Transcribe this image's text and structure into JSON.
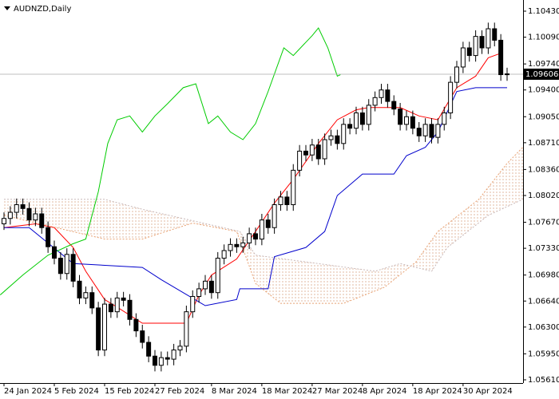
{
  "chart_data": {
    "type": "candlestick",
    "title": "AUDNZD,Daily",
    "categories": [
      "24 Jan 2024",
      null,
      null,
      null,
      null,
      null,
      null,
      null,
      "5 Feb 2024",
      null,
      null,
      null,
      null,
      null,
      null,
      null,
      "15 Feb 2024",
      null,
      null,
      null,
      null,
      null,
      null,
      null,
      "27 Feb 2024",
      null,
      null,
      null,
      null,
      null,
      null,
      null,
      null,
      "8 Mar 2024",
      null,
      null,
      null,
      null,
      null,
      null,
      null,
      "18 Mar 2024",
      null,
      null,
      null,
      null,
      null,
      null,
      null,
      "27 Mar 2024",
      null,
      null,
      null,
      null,
      null,
      null,
      null,
      "8 Apr 2024",
      null,
      null,
      null,
      null,
      null,
      null,
      null,
      "18 Apr 2024",
      null,
      null,
      null,
      null,
      null,
      null,
      null,
      "30 Apr 2024",
      null,
      null,
      null,
      null,
      null,
      null,
      null
    ],
    "open": [
      1.0765,
      1.0772,
      1.078,
      1.079,
      1.0785,
      1.077,
      1.0778,
      1.076,
      1.0735,
      1.072,
      1.07,
      1.0725,
      1.069,
      1.0668,
      1.0675,
      1.0655,
      1.06,
      1.066,
      1.065,
      1.0668,
      1.0665,
      1.064,
      1.0625,
      1.061,
      1.0592,
      1.058,
      1.059,
      1.0588,
      1.06,
      1.0605,
      1.065,
      1.067,
      1.068,
      1.069,
      1.0675,
      1.072,
      1.073,
      1.0738,
      1.0735,
      1.074,
      1.0752,
      1.0745,
      1.077,
      1.076,
      1.079,
      1.08,
      1.079,
      1.0835,
      1.086,
      1.0855,
      1.0868,
      1.085,
      1.0875,
      1.088,
      1.087,
      1.0895,
      1.089,
      1.091,
      1.0895,
      1.092,
      1.093,
      1.094,
      1.0925,
      1.0915,
      1.0895,
      1.0905,
      1.089,
      1.088,
      1.0895,
      1.0878,
      1.0895,
      1.091,
      1.095,
      1.097,
      1.0995,
      1.0985,
      1.101,
      1.0995,
      1.102,
      1.1005,
      1.096
    ],
    "high": [
      1.078,
      1.0788,
      1.0798,
      1.0798,
      1.0793,
      1.0786,
      1.0786,
      1.0768,
      1.0743,
      1.0728,
      1.0733,
      1.0733,
      1.0698,
      1.0683,
      1.0683,
      1.0663,
      1.0668,
      1.0668,
      1.0676,
      1.0676,
      1.0673,
      1.0648,
      1.0633,
      1.0618,
      1.06,
      1.0598,
      1.0598,
      1.0608,
      1.0613,
      1.0658,
      1.0678,
      1.0688,
      1.0698,
      1.0698,
      1.0728,
      1.0738,
      1.0746,
      1.0746,
      1.0748,
      1.076,
      1.076,
      1.0778,
      1.0778,
      1.0798,
      1.0808,
      1.0808,
      1.0843,
      1.0868,
      1.0868,
      1.0876,
      1.0876,
      1.0883,
      1.0888,
      1.0888,
      1.0903,
      1.0903,
      1.0918,
      1.0918,
      1.0928,
      1.0938,
      1.0948,
      1.0948,
      1.0933,
      1.0923,
      1.0913,
      1.0913,
      1.0898,
      1.0903,
      1.0903,
      1.0903,
      1.0918,
      1.0958,
      1.0978,
      1.1003,
      1.1003,
      1.1018,
      1.1018,
      1.1028,
      1.1028,
      1.1013,
      1.0969
    ],
    "low": [
      1.0757,
      1.0764,
      1.0772,
      1.0777,
      1.0762,
      1.0762,
      1.0752,
      1.0727,
      1.0712,
      1.0692,
      1.0692,
      1.0682,
      1.066,
      1.066,
      1.0647,
      1.0592,
      1.0592,
      1.0642,
      1.0642,
      1.0657,
      1.0632,
      1.0617,
      1.0602,
      1.0584,
      1.0572,
      1.0572,
      1.058,
      1.058,
      1.0592,
      1.0597,
      1.0642,
      1.0662,
      1.0672,
      1.0667,
      1.0667,
      1.0712,
      1.0722,
      1.0727,
      1.0727,
      1.0732,
      1.0737,
      1.0737,
      1.0752,
      1.0752,
      1.0782,
      1.0782,
      1.0782,
      1.0827,
      1.0847,
      1.0847,
      1.0842,
      1.0842,
      1.0867,
      1.0862,
      1.0862,
      1.0882,
      1.0882,
      1.0887,
      1.0887,
      1.0912,
      1.0922,
      1.0917,
      1.0907,
      1.0887,
      1.0887,
      1.0882,
      1.0872,
      1.0872,
      1.087,
      1.087,
      1.0887,
      1.0902,
      1.0942,
      1.0962,
      1.0977,
      1.0977,
      1.0987,
      1.0987,
      1.0997,
      1.0952,
      1.0952
    ],
    "close": [
      1.0772,
      1.078,
      1.079,
      1.0785,
      1.077,
      1.0778,
      1.076,
      1.0735,
      1.072,
      1.07,
      1.0725,
      1.069,
      1.0668,
      1.0675,
      1.0655,
      1.06,
      1.066,
      1.065,
      1.0668,
      1.0665,
      1.064,
      1.0625,
      1.061,
      1.0592,
      1.058,
      1.059,
      1.0588,
      1.06,
      1.0605,
      1.065,
      1.067,
      1.068,
      1.069,
      1.0675,
      1.072,
      1.073,
      1.0738,
      1.0735,
      1.074,
      1.0752,
      1.0745,
      1.077,
      1.076,
      1.079,
      1.08,
      1.079,
      1.0835,
      1.086,
      1.0855,
      1.0868,
      1.085,
      1.0875,
      1.088,
      1.087,
      1.0895,
      1.089,
      1.091,
      1.0895,
      1.092,
      1.093,
      1.094,
      1.0925,
      1.0915,
      1.0895,
      1.0905,
      1.089,
      1.088,
      1.0895,
      1.0878,
      1.0895,
      1.091,
      1.095,
      1.097,
      1.0995,
      1.0985,
      1.101,
      1.0995,
      1.102,
      1.1005,
      1.096,
      1.0961
    ],
    "up_color": "#ffffff",
    "down_color": "#000000",
    "ylim": [
      1.05568,
      1.10576
    ],
    "yticks": [
      {
        "value": 1.1043,
        "label": "1.10430"
      },
      {
        "value": 1.1009,
        "label": "1.10090"
      },
      {
        "value": 1.0974,
        "label": "1.09740"
      },
      {
        "value": 1.094,
        "label": "1.09400"
      },
      {
        "value": 1.0905,
        "label": "1.09050"
      },
      {
        "value": 1.0871,
        "label": "1.08710"
      },
      {
        "value": 1.0836,
        "label": "1.08360"
      },
      {
        "value": 1.0802,
        "label": "1.08020"
      },
      {
        "value": 1.0767,
        "label": "1.07670"
      },
      {
        "value": 1.0733,
        "label": "1.07330"
      },
      {
        "value": 1.0698,
        "label": "1.06980"
      },
      {
        "value": 1.0664,
        "label": "1.06640"
      },
      {
        "value": 1.063,
        "label": "1.06300"
      },
      {
        "value": 1.0595,
        "label": "1.05950"
      },
      {
        "value": 1.0561,
        "label": "1.05610"
      }
    ],
    "last_price": 1.09606,
    "overlays": [
      {
        "color": "#ff0000",
        "dash": false,
        "x": [
          0,
          5,
          8,
          11,
          13,
          16,
          18,
          22,
          29,
          31,
          33,
          37,
          40,
          43,
          46,
          50,
          53,
          56,
          58,
          63,
          66,
          69,
          72,
          75,
          77,
          79
        ],
        "values": [
          1.076,
          1.0765,
          1.076,
          1.0734,
          1.0703,
          1.0666,
          1.0656,
          1.0635,
          1.0635,
          1.0672,
          1.0698,
          1.0719,
          1.0755,
          1.0792,
          1.0823,
          1.087,
          1.0901,
          1.0914,
          1.0917,
          1.0917,
          1.0906,
          1.0901,
          1.0943,
          1.0958,
          1.0982,
          1.0988
        ]
      },
      {
        "color": "#0000cc",
        "dash": false,
        "x": [
          0,
          4,
          11,
          22,
          25,
          32,
          37,
          37.5,
          42,
          43,
          48,
          51,
          53,
          56,
          57,
          62,
          64,
          67,
          69,
          72,
          75,
          80
        ],
        "values": [
          1.076,
          1.076,
          1.0713,
          1.0708,
          1.0692,
          1.0658,
          1.0666,
          1.068,
          1.068,
          1.0722,
          1.0734,
          1.0755,
          1.0802,
          1.0823,
          1.083,
          1.083,
          1.0854,
          1.0865,
          1.0885,
          1.0938,
          1.0943,
          1.0943
        ]
      },
      {
        "color": "#00cc00",
        "dash": false,
        "x": [
          -0.6,
          3,
          7,
          11,
          13,
          15,
          16.5,
          18,
          20,
          22,
          24,
          26,
          28.5,
          30.5,
          32.5,
          34,
          36,
          38,
          40,
          42,
          44.5,
          46,
          49,
          50,
          51.5,
          53,
          53.5
        ],
        "values": [
          1.0672,
          1.0698,
          1.0724,
          1.0739,
          1.0745,
          1.0807,
          1.087,
          1.0901,
          1.0906,
          1.0885,
          1.0906,
          1.0922,
          1.0943,
          1.0948,
          1.0896,
          1.0906,
          1.0885,
          1.0875,
          1.0896,
          1.0938,
          1.0995,
          1.0985,
          1.1011,
          1.1021,
          1.0995,
          1.0958,
          1.096
        ]
      },
      {
        "color": "#e8a070",
        "dash": true,
        "x": [
          0,
          16,
          22,
          30,
          37,
          40,
          44,
          54,
          60.5,
          65.5,
          69,
          75.5,
          80,
          82.5
        ],
        "values": [
          1.0776,
          1.0745,
          1.0745,
          1.0766,
          1.0755,
          1.0687,
          1.0661,
          1.0661,
          1.0682,
          1.0715,
          1.0755,
          1.0797,
          1.0844,
          1.0865
        ]
      },
      {
        "color": "#c8b8b8",
        "dash": true,
        "x": [
          0,
          16,
          22,
          37.5,
          40,
          59,
          63,
          68,
          70.5,
          77,
          82.5
        ],
        "values": [
          1.0797,
          1.0797,
          1.0784,
          1.0755,
          1.0724,
          1.0703,
          1.0713,
          1.0703,
          1.0734,
          1.0776,
          1.0797
        ]
      }
    ]
  }
}
